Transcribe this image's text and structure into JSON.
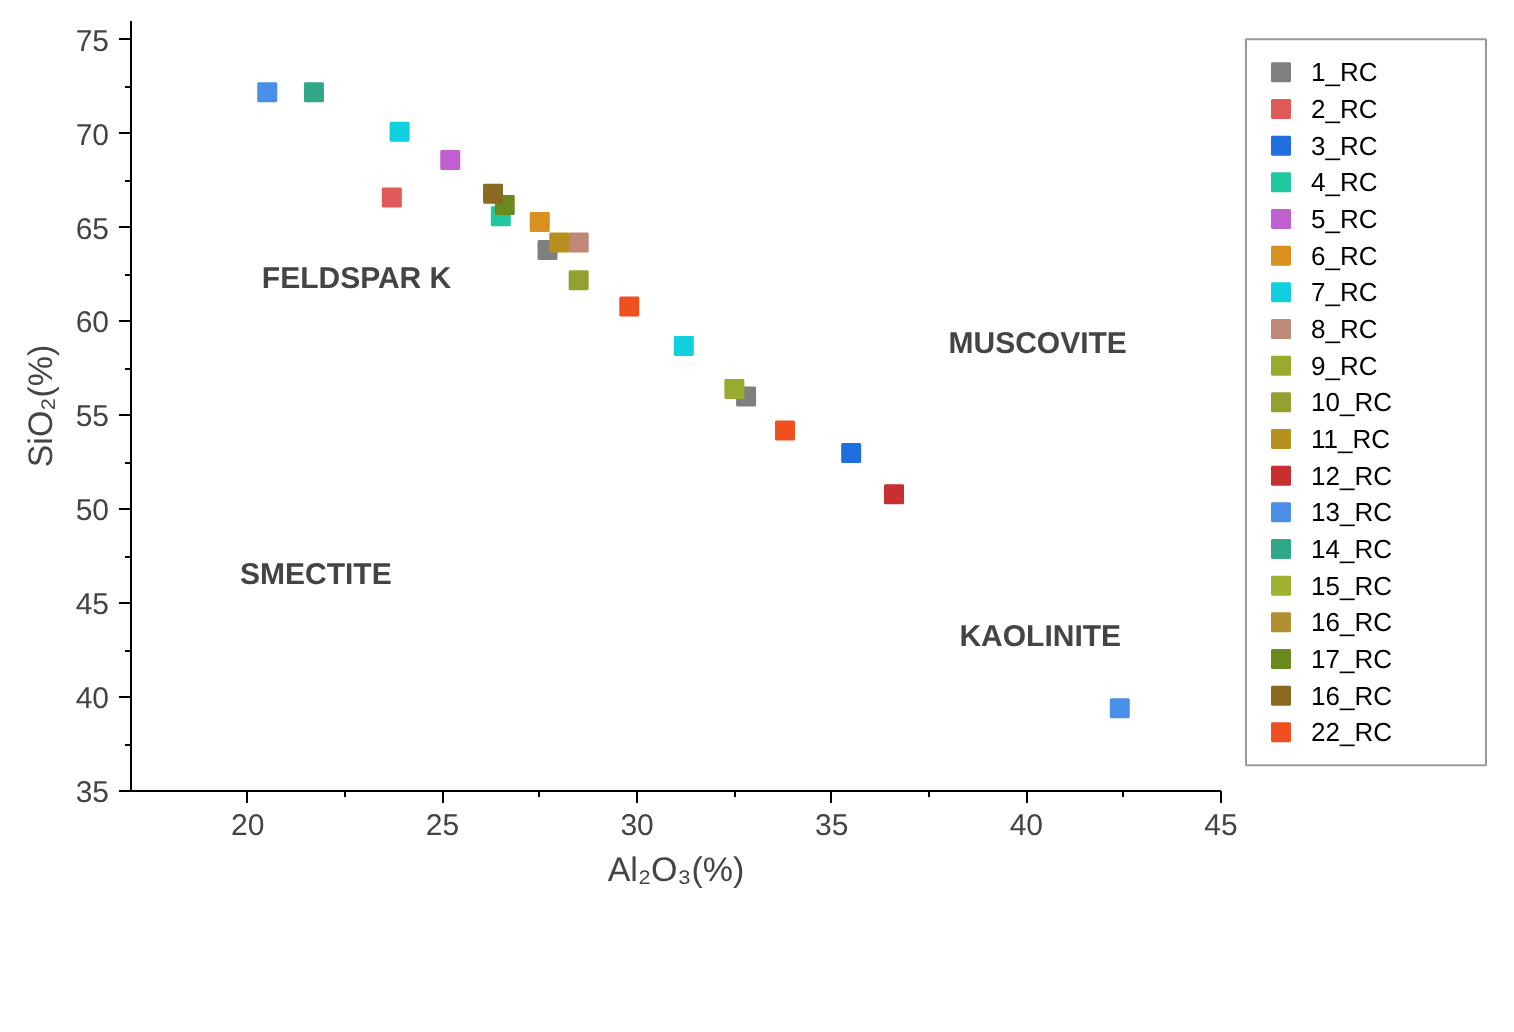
{
  "chart_data": {
    "type": "scatter",
    "xlabel": "Al₂O₃(%)",
    "ylabel": "SiO₂(%)",
    "marker": "square",
    "legend": "right",
    "grid": false,
    "xlim": [
      17,
      45
    ],
    "ylim": [
      35,
      76
    ],
    "xticks": [
      20,
      25,
      30,
      35,
      40,
      45
    ],
    "yticks": [
      35,
      40,
      45,
      50,
      55,
      60,
      65,
      70,
      75
    ],
    "series": [
      {
        "name": "1_RC",
        "color": "#7f7f7f",
        "x": [
          27.7,
          32.8
        ],
        "values": [
          63.8,
          56.0
        ]
      },
      {
        "name": "2_RC",
        "color": "#e05a5a",
        "x": [
          23.7
        ],
        "values": [
          66.6
        ]
      },
      {
        "name": "3_RC",
        "color": "#1f6fe0",
        "x": [
          35.5
        ],
        "values": [
          53.0
        ]
      },
      {
        "name": "4_RC",
        "color": "#20c8a0",
        "x": [
          26.5
        ],
        "values": [
          65.6
        ]
      },
      {
        "name": "5_RC",
        "color": "#c060d0",
        "x": [
          25.2
        ],
        "values": [
          68.6
        ]
      },
      {
        "name": "6_RC",
        "color": "#d8901e",
        "x": [
          27.5
        ],
        "values": [
          65.3
        ]
      },
      {
        "name": "7_RC",
        "color": "#10d0e0",
        "x": [
          23.9,
          31.2
        ],
        "values": [
          70.1,
          58.7
        ]
      },
      {
        "name": "8_RC",
        "color": "#c08878",
        "x": [
          28.5
        ],
        "values": [
          64.2
        ]
      },
      {
        "name": "9_RC",
        "color": "#9aaa30",
        "x": [
          32.5
        ],
        "values": [
          56.4
        ]
      },
      {
        "name": "10_RC",
        "color": "#94a030",
        "x": [
          28.5
        ],
        "values": [
          62.2
        ]
      },
      {
        "name": "11_RC",
        "color": "#b89020",
        "x": [
          28.0
        ],
        "values": [
          64.2
        ]
      },
      {
        "name": "12_RC",
        "color": "#c83030",
        "x": [
          36.6
        ],
        "values": [
          50.8
        ]
      },
      {
        "name": "13_RC",
        "color": "#4a90e8",
        "x": [
          20.5,
          42.4
        ],
        "values": [
          72.2,
          39.4
        ]
      },
      {
        "name": "14_RC",
        "color": "#30a888",
        "x": [
          21.7
        ],
        "values": [
          72.2
        ]
      },
      {
        "name": "15_RC",
        "color": "#a0b030"
      },
      {
        "name": "16_RC",
        "color": "#b09030"
      },
      {
        "name": "17_RC",
        "color": "#6a8a20",
        "x": [
          26.6
        ],
        "values": [
          66.2
        ]
      },
      {
        "name": "16_RC",
        "color": "#8a6a20",
        "x": [
          26.3
        ],
        "values": [
          66.8
        ]
      },
      {
        "name": "22_RC",
        "color": "#f05020",
        "x": [
          29.8,
          33.8
        ],
        "values": [
          60.8,
          54.2
        ]
      }
    ],
    "annotations": [
      "FELDSPAR K",
      "MUSCOVITE",
      "SMECTITE",
      "KAOLINITE"
    ]
  }
}
